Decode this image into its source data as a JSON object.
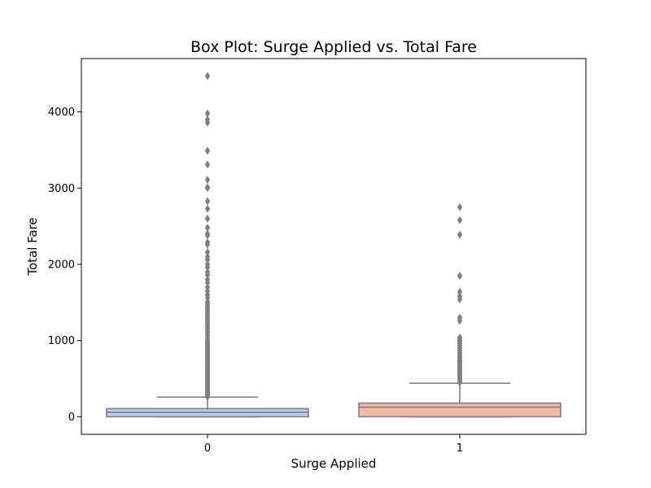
{
  "chart_data": {
    "type": "box",
    "title": "Box Plot: Surge Applied vs. Total Fare",
    "xlabel": "Surge Applied",
    "ylabel": "Total Fare",
    "categories": [
      "0",
      "1"
    ],
    "ylim": [
      -230,
      4700
    ],
    "yticks": [
      0,
      1000,
      2000,
      3000,
      4000
    ],
    "grid": false,
    "colors": {
      "box_fill": [
        "#b7c9f0",
        "#f3b8a1"
      ],
      "box_edge": "#7f7f7f",
      "outlier": "#7f7f7f"
    },
    "boxes": [
      {
        "category": "0",
        "min": 0,
        "q1": 0,
        "median": 60,
        "q3": 107,
        "whisker_high": 258,
        "outliers": [
          265,
          285,
          300,
          320,
          340,
          360,
          380,
          400,
          420,
          440,
          460,
          480,
          500,
          520,
          540,
          560,
          580,
          600,
          620,
          640,
          660,
          680,
          700,
          720,
          740,
          760,
          780,
          800,
          820,
          840,
          860,
          880,
          900,
          920,
          940,
          960,
          980,
          1000,
          1030,
          1060,
          1090,
          1120,
          1150,
          1180,
          1210,
          1240,
          1270,
          1300,
          1330,
          1360,
          1390,
          1420,
          1450,
          1480,
          1510,
          1560,
          1600,
          1650,
          1700,
          1760,
          1800,
          1860,
          1900,
          1960,
          2000,
          2060,
          2100,
          2160,
          2260,
          2290,
          2380,
          2400,
          2480,
          2600,
          2730,
          2830,
          3000,
          3010,
          3110,
          3310,
          3490,
          3860,
          3900,
          3980,
          4470
        ]
      },
      {
        "category": "1",
        "min": 0,
        "q1": 0,
        "median": 125,
        "q3": 180,
        "whisker_high": 440,
        "outliers": [
          450,
          470,
          490,
          510,
          530,
          550,
          570,
          590,
          610,
          630,
          650,
          670,
          690,
          710,
          730,
          750,
          780,
          810,
          840,
          870,
          900,
          930,
          960,
          990,
          1020,
          1040,
          1260,
          1300,
          1540,
          1580,
          1640,
          1850,
          2390,
          2580,
          2750
        ]
      }
    ]
  }
}
